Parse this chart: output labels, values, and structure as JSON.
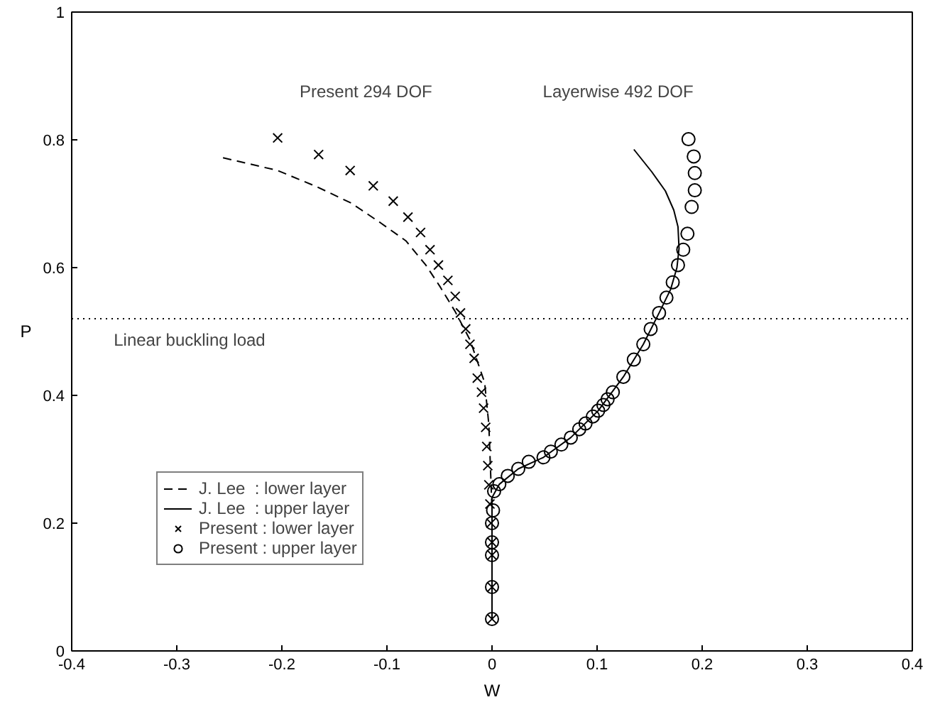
{
  "chart_data": {
    "type": "line",
    "xlabel": "W",
    "ylabel": "P",
    "xlim": [
      -0.4,
      0.4
    ],
    "ylim": [
      0,
      1
    ],
    "xticks": [
      -0.4,
      -0.3,
      -0.2,
      -0.1,
      0,
      0.1,
      0.2,
      0.3,
      0.4
    ],
    "yticks": [
      0,
      0.2,
      0.4,
      0.6,
      0.8,
      1
    ],
    "grid": false,
    "legend": "bottom left",
    "annotations": [
      "Present 294 DOF",
      "Layerwise 492 DOF"
    ],
    "ref_lines": [
      {
        "axis": "y",
        "value": 0.52,
        "label": "Linear buckling load",
        "line_style": "dotted",
        "color": "#000000"
      }
    ],
    "series": [
      {
        "name": "J. Lee  : lower layer",
        "color": "#000000",
        "line_style": "dashed",
        "marker": "none",
        "x": [
          -0.256,
          -0.204,
          -0.166,
          -0.134,
          -0.106,
          -0.082,
          -0.063,
          -0.049,
          -0.035,
          -0.021,
          -0.007,
          -0.003,
          -0.001,
          0,
          0
        ],
        "values": [
          0.772,
          0.752,
          0.726,
          0.701,
          0.67,
          0.642,
          0.604,
          0.569,
          0.531,
          0.487,
          0.42,
          0.354,
          0.265,
          0.22,
          0.05
        ]
      },
      {
        "name": "J. Lee  : upper layer",
        "color": "#000000",
        "line_style": "solid",
        "marker": "none",
        "x": [
          0.135,
          0.152,
          0.165,
          0.173,
          0.177,
          0.178,
          0.176,
          0.17,
          0.159,
          0.144,
          0.125,
          0.101,
          0.075,
          0.049,
          0.025,
          0.007,
          0,
          0
        ],
        "values": [
          0.785,
          0.75,
          0.72,
          0.69,
          0.664,
          0.63,
          0.6,
          0.566,
          0.529,
          0.48,
          0.429,
          0.376,
          0.334,
          0.303,
          0.285,
          0.261,
          0.24,
          0.05
        ]
      },
      {
        "name": "Present : lower layer",
        "type": "scatter",
        "color": "#000000",
        "marker": "cross",
        "x": [
          -0.204,
          -0.165,
          -0.135,
          -0.113,
          -0.094,
          -0.08,
          -0.068,
          -0.059,
          -0.051,
          -0.042,
          -0.035,
          -0.03,
          -0.025,
          -0.021,
          -0.017,
          -0.014,
          -0.01,
          -0.008,
          -0.006,
          -0.005,
          -0.004,
          -0.003,
          -0.002,
          -0.001,
          0,
          0,
          0,
          0
        ],
        "values": [
          0.803,
          0.777,
          0.752,
          0.728,
          0.704,
          0.679,
          0.655,
          0.628,
          0.604,
          0.58,
          0.555,
          0.529,
          0.504,
          0.48,
          0.458,
          0.427,
          0.405,
          0.38,
          0.35,
          0.32,
          0.29,
          0.26,
          0.23,
          0.2,
          0.17,
          0.15,
          0.1,
          0.05
        ]
      },
      {
        "name": "Present : upper layer",
        "type": "scatter",
        "color": "#000000",
        "marker": "circle",
        "x": [
          0.187,
          0.192,
          0.193,
          0.193,
          0.19,
          0.186,
          0.182,
          0.177,
          0.172,
          0.166,
          0.159,
          0.151,
          0.144,
          0.135,
          0.125,
          0.115,
          0.11,
          0.106,
          0.101,
          0.096,
          0.089,
          0.083,
          0.075,
          0.066,
          0.056,
          0.049,
          0.035,
          0.025,
          0.015,
          0.007,
          0.002,
          0.001,
          0,
          0,
          0,
          0,
          0
        ],
        "values": [
          0.801,
          0.774,
          0.748,
          0.721,
          0.695,
          0.653,
          0.628,
          0.604,
          0.577,
          0.553,
          0.529,
          0.504,
          0.48,
          0.456,
          0.429,
          0.405,
          0.394,
          0.385,
          0.376,
          0.367,
          0.356,
          0.347,
          0.334,
          0.323,
          0.312,
          0.303,
          0.296,
          0.285,
          0.274,
          0.261,
          0.25,
          0.22,
          0.2,
          0.17,
          0.15,
          0.1,
          0.05
        ]
      }
    ]
  }
}
